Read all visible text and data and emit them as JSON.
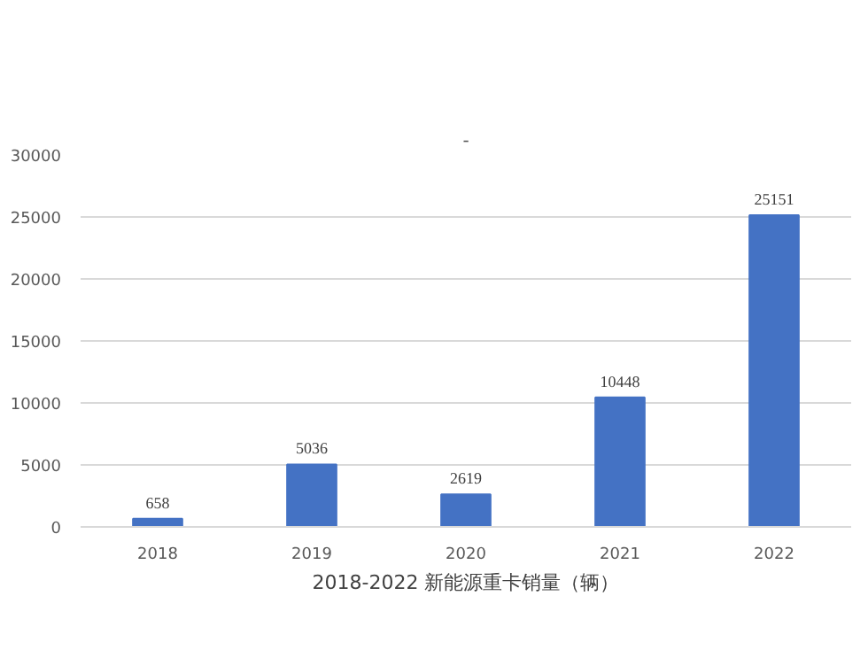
{
  "chart_data": {
    "type": "bar",
    "title": "-",
    "xlabel": "2018-2022 新能源重卡销量（辆）",
    "categories": [
      "2018",
      "2019",
      "2020",
      "2021",
      "2022"
    ],
    "values": [
      658,
      5036,
      2619,
      10448,
      25151
    ],
    "color": "#4472c4",
    "ylim": [
      0,
      30000
    ],
    "yticks": [
      0,
      5000,
      10000,
      15000,
      20000,
      25000,
      30000
    ],
    "grid": "y",
    "data_labels": true
  }
}
